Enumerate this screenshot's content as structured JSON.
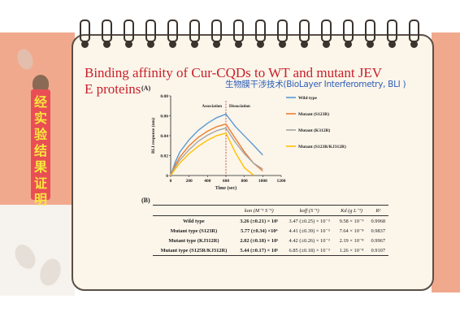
{
  "slide": {
    "title": "Binding affinity of Cur-CQDs to WT and mutant JEV E proteins",
    "subtitle": "生物膜干涉技术(BioLayer Interferometry, BLI )",
    "side_tag": "经实验结果证明"
  },
  "panel_a_label": "(A)",
  "panel_b_label": "(B)",
  "colors": {
    "title": "#c8202a",
    "subtitle": "#2e5fb6",
    "tag_bg": "#e94e55",
    "tag_text": "#f5e93b",
    "accent_peach": "#f1a98e"
  },
  "chart_data": {
    "type": "line",
    "xlabel": "Time (sec)",
    "ylabel": "BLI response (nm)",
    "xlim": [
      0,
      1200
    ],
    "ylim": [
      0,
      0.08
    ],
    "xticks": [
      "0",
      "200",
      "400",
      "600",
      "800",
      "1000",
      "1200"
    ],
    "yticks": [
      "0",
      "0.02",
      "0.04",
      "0.06",
      "0.08"
    ],
    "annotations": [
      "Association",
      "Dissociation"
    ],
    "divider_x": 600,
    "legend_position": "top-right",
    "series": [
      {
        "name": "Wild  type",
        "color": "#5b9bd5",
        "x": [
          0,
          50,
          100,
          200,
          300,
          400,
          500,
          600,
          700,
          800,
          900,
          1000
        ],
        "y": [
          0.0,
          0.014,
          0.024,
          0.036,
          0.045,
          0.052,
          0.058,
          0.062,
          0.05,
          0.04,
          0.03,
          0.02
        ]
      },
      {
        "name": "Mutant (S123R)",
        "color": "#ed7d31",
        "x": [
          0,
          50,
          100,
          200,
          300,
          400,
          500,
          600,
          700,
          800,
          900,
          1000
        ],
        "y": [
          0.0,
          0.011,
          0.019,
          0.03,
          0.038,
          0.044,
          0.049,
          0.052,
          0.038,
          0.024,
          0.012,
          0.004
        ]
      },
      {
        "name": "Mutant (K312R)",
        "color": "#a5a5a5",
        "x": [
          0,
          50,
          100,
          200,
          300,
          400,
          500,
          600,
          700,
          800,
          900,
          1000
        ],
        "y": [
          0.0,
          0.009,
          0.016,
          0.026,
          0.034,
          0.04,
          0.045,
          0.048,
          0.034,
          0.022,
          0.012,
          0.006
        ]
      },
      {
        "name": "Mutant (S123R/KJ312R)",
        "color": "#ffc000",
        "x": [
          0,
          50,
          100,
          200,
          300,
          400,
          500,
          600,
          700,
          800,
          900
        ],
        "y": [
          0.0,
          0.007,
          0.013,
          0.022,
          0.029,
          0.035,
          0.04,
          0.043,
          0.024,
          0.008,
          0.0
        ]
      }
    ]
  },
  "kinetics_table": {
    "headers": [
      "",
      "kon (M⁻¹ S⁻¹)",
      "koff (S⁻¹)",
      "Kd (g L⁻¹)",
      "R²"
    ],
    "rows": [
      {
        "label": "Wild type",
        "kon": "3.26 (±0.21) × 10⁵",
        "koff": "3.47 (±0.25) × 10⁻³",
        "kd": "9.58 × 10⁻⁹",
        "r2": "0.9968"
      },
      {
        "label": "Mutant type (S123R)",
        "kon": "5.77 (±0.34) ×10⁴",
        "koff": "4.41 (±0.39) × 10⁻³",
        "kd": "7.64 × 10⁻⁸",
        "r2": "0.9837"
      },
      {
        "label": "Mutant type (KJ312R)",
        "kon": "2.02 (±0.18) × 10⁵",
        "koff": "4.42 (±0.26) × 10⁻³",
        "kd": "2.19 × 10⁻⁸",
        "r2": "0.9967"
      },
      {
        "label": "Mutant type (S125R/KJ312R)",
        "kon": "5.44 (±0.17) × 10⁵",
        "koff": "6.85 (±0.18) × 10⁻³",
        "kd": "1.26 × 10⁻⁸",
        "r2": "0.9107"
      }
    ]
  }
}
